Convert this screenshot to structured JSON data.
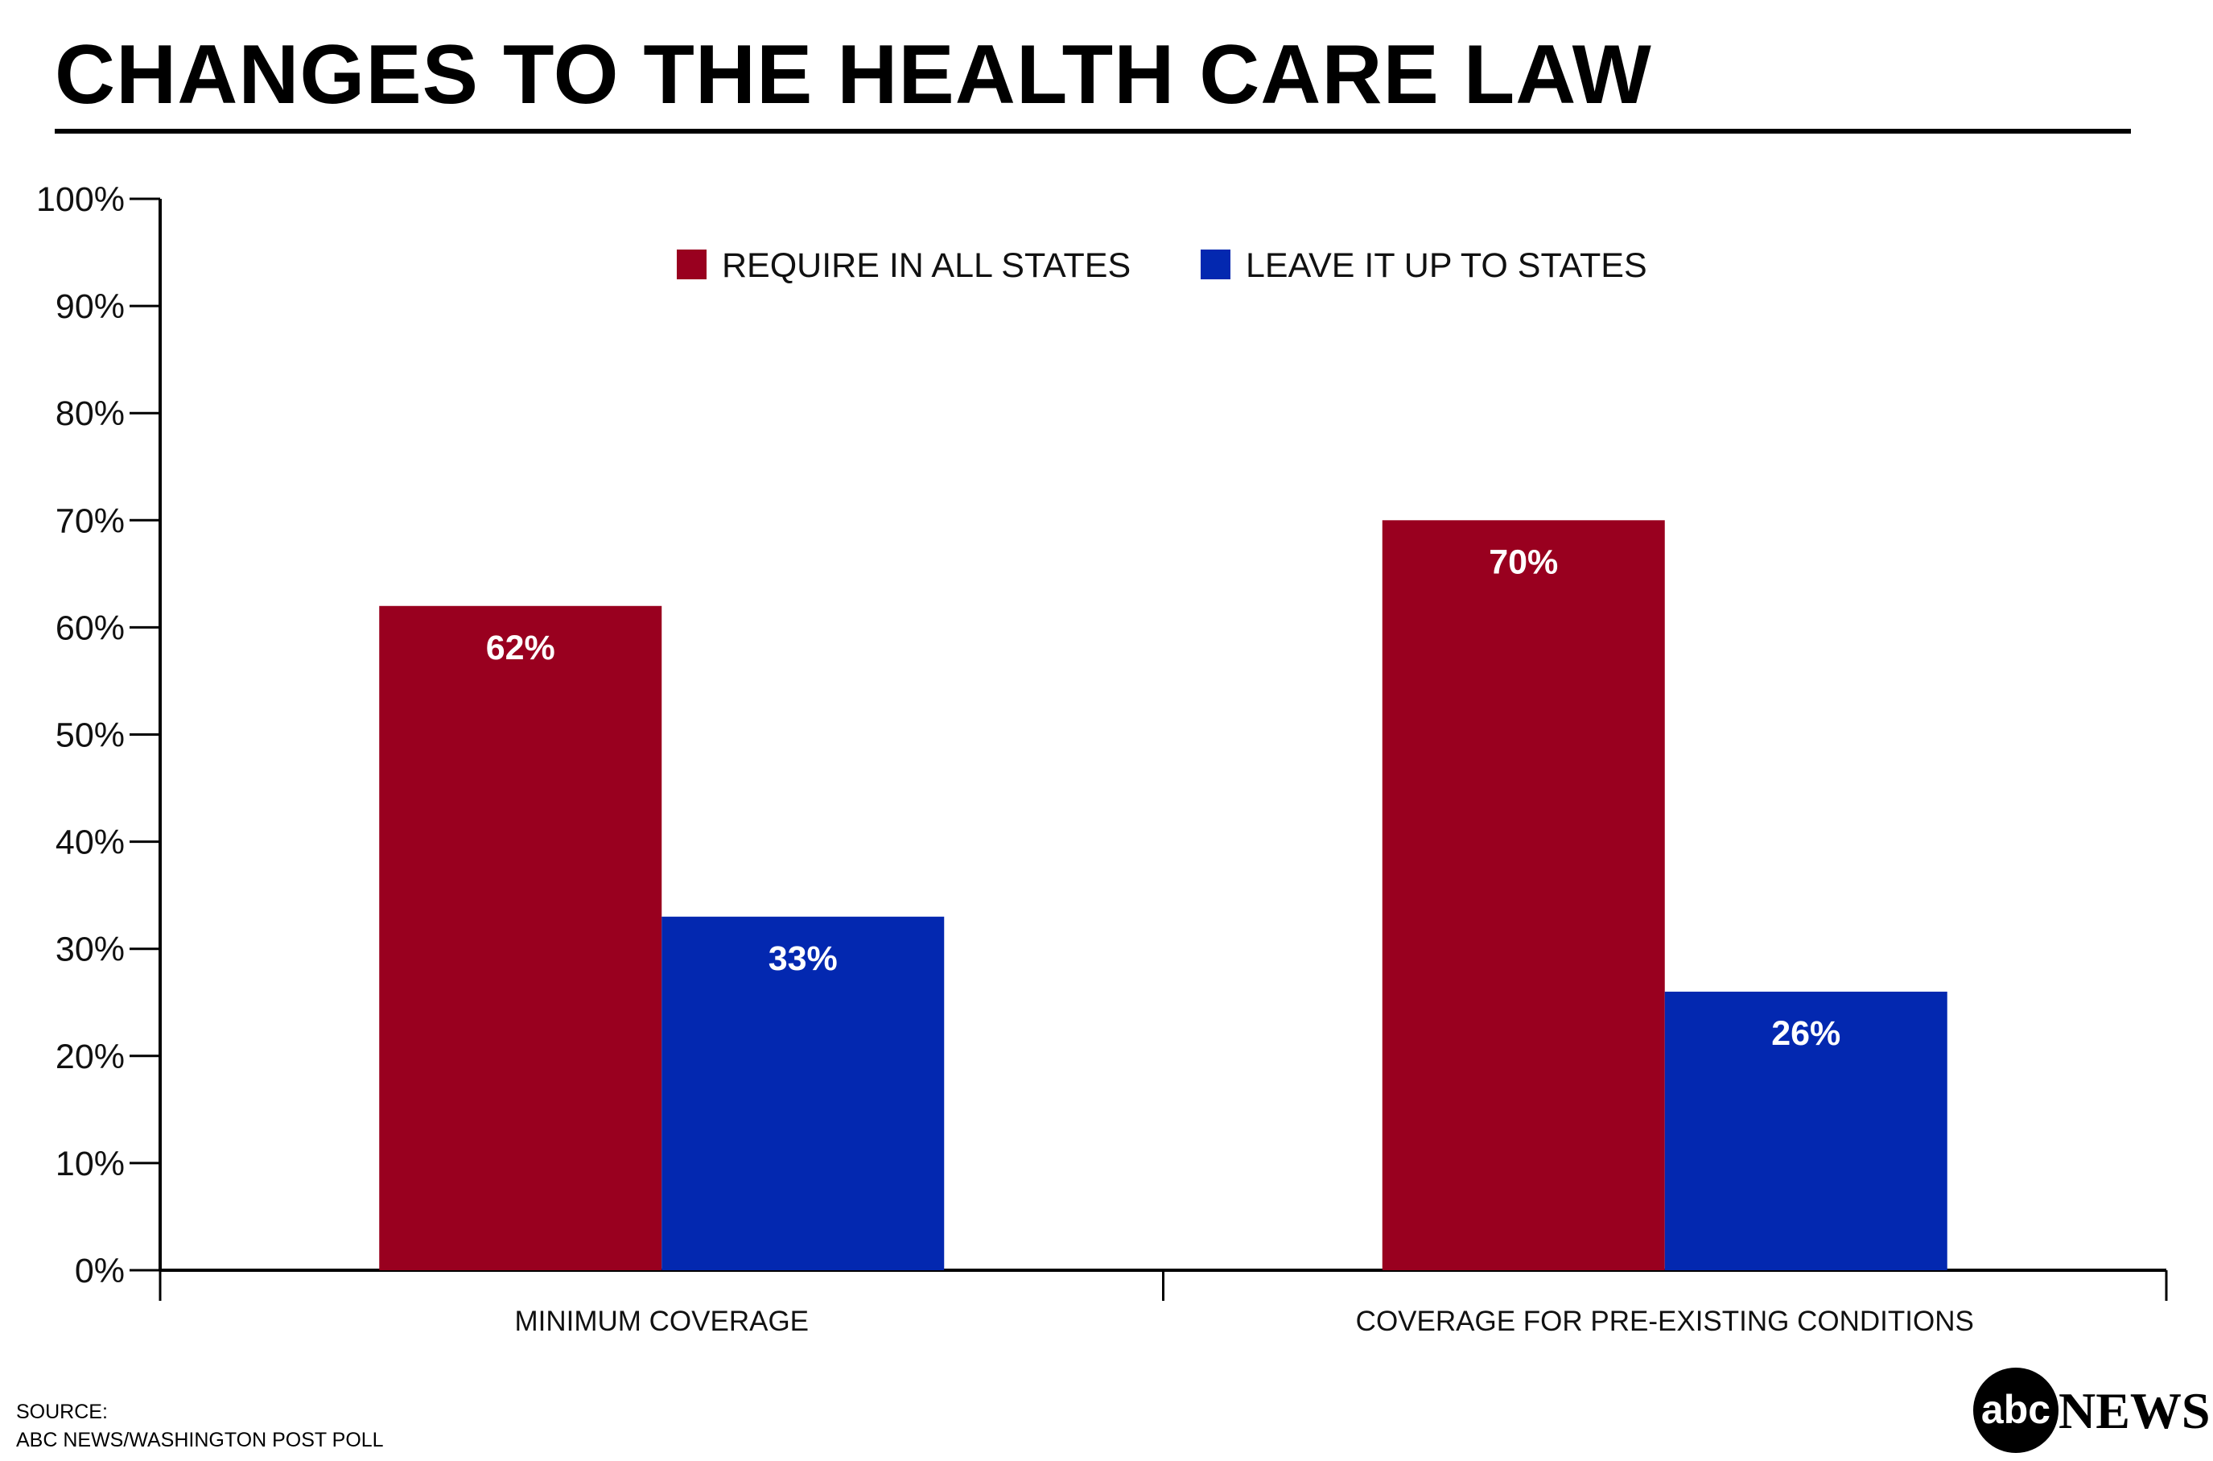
{
  "header": {
    "title": "CHANGES TO THE HEALTH CARE LAW"
  },
  "chart_data": {
    "type": "bar",
    "title": "CHANGES TO THE HEALTH CARE LAW",
    "categories": [
      "MINIMUM COVERAGE",
      "COVERAGE FOR PRE-EXISTING CONDITIONS"
    ],
    "series": [
      {
        "name": "REQUIRE IN ALL STATES",
        "values": [
          62,
          70
        ],
        "labels": [
          "62%",
          "70%"
        ],
        "color": "#99001F"
      },
      {
        "name": "LEAVE IT UP TO STATES",
        "values": [
          33,
          26
        ],
        "labels": [
          "33%",
          "26%"
        ],
        "color": "#0328B0"
      }
    ],
    "ylim": [
      0,
      100
    ],
    "yticks": [
      0,
      10,
      20,
      30,
      40,
      50,
      60,
      70,
      80,
      90,
      100
    ],
    "ytick_labels": [
      "0%",
      "10%",
      "20%",
      "30%",
      "40%",
      "50%",
      "60%",
      "70%",
      "80%",
      "90%",
      "100%"
    ],
    "xlabel": "",
    "ylabel": "",
    "grid": false,
    "legend_position": "top"
  },
  "source": {
    "label": "SOURCE:",
    "text": "ABC NEWS/WASHINGTON POST POLL"
  },
  "logo": {
    "abc": "abc",
    "news": "NEWS"
  }
}
